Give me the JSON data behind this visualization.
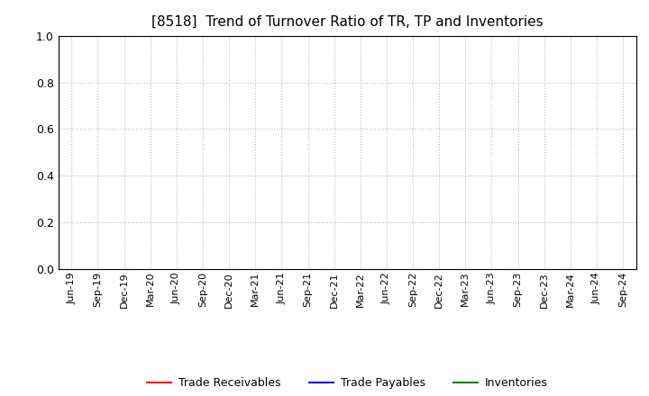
{
  "title": "[8518]  Trend of Turnover Ratio of TR, TP and Inventories",
  "title_fontsize": 11,
  "ylim": [
    0.0,
    1.0
  ],
  "yticks": [
    0.0,
    0.2,
    0.4,
    0.6,
    0.8,
    1.0
  ],
  "x_labels": [
    "Jun-19",
    "Sep-19",
    "Dec-19",
    "Mar-20",
    "Jun-20",
    "Sep-20",
    "Dec-20",
    "Mar-21",
    "Jun-21",
    "Sep-21",
    "Dec-21",
    "Mar-22",
    "Jun-22",
    "Sep-22",
    "Dec-22",
    "Mar-23",
    "Jun-23",
    "Sep-23",
    "Dec-23",
    "Mar-24",
    "Jun-24",
    "Sep-24"
  ],
  "line_colors": {
    "trade_receivables": "#FF0000",
    "trade_payables": "#0000FF",
    "inventories": "#008000"
  },
  "legend_labels": [
    "Trade Receivables",
    "Trade Payables",
    "Inventories"
  ],
  "grid_color": "#bbbbbb",
  "background_color": "#ffffff",
  "plot_bg_color": "#ffffff",
  "spine_color": "#000000",
  "tick_fontsize": 8,
  "ytick_fontsize": 9
}
